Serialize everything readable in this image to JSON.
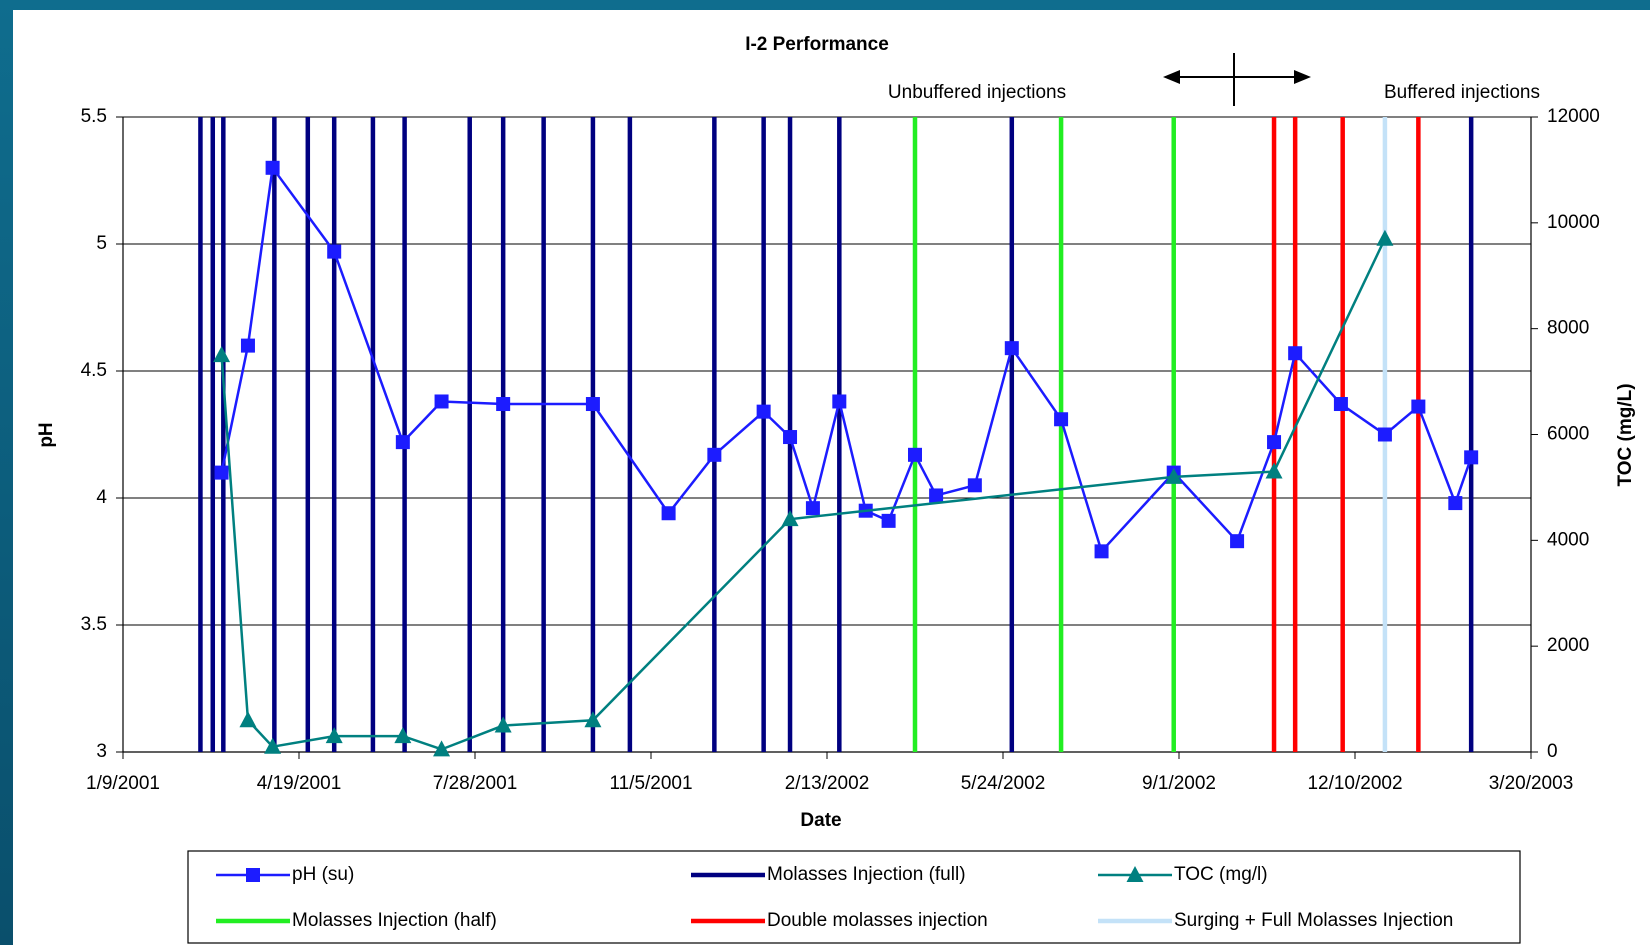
{
  "chart_data": {
    "type": "line",
    "title": "I-2 Performance",
    "x_label": "Date",
    "y_label": "pH",
    "y2_label": "TOC (mg/L)",
    "xlim": [
      "1/9/2001",
      "3/20/2003"
    ],
    "xticks": [
      "1/9/2001",
      "4/19/2001",
      "7/28/2001",
      "11/5/2001",
      "2/13/2002",
      "5/24/2002",
      "9/1/2002",
      "12/10/2002",
      "3/20/2003"
    ],
    "ylim": [
      3,
      5.5
    ],
    "yticks": [
      3,
      3.5,
      4,
      4.5,
      5,
      5.5
    ],
    "y2lim": [
      0,
      12000
    ],
    "y2ticks": [
      0,
      2000,
      4000,
      6000,
      8000,
      10000,
      12000
    ],
    "grid": true,
    "legend": "bottom",
    "annotations": [
      "Unbuffered injections",
      "Buffered injections"
    ],
    "series": [
      {
        "name": "pH (su)",
        "color": "#1c1cff",
        "marker": "square",
        "x": [
          "3/6/2001",
          "3/21/2001",
          "4/4/2001",
          "5/9/2001",
          "6/17/2001",
          "7/9/2001",
          "8/13/2001",
          "10/3/2001",
          "11/15/2001",
          "12/11/2001",
          "1/8/2002",
          "1/23/2002",
          "2/5/2002",
          "2/20/2002",
          "3/7/2002",
          "3/20/2002",
          "4/4/2002",
          "4/16/2002",
          "5/8/2002",
          "5/29/2002",
          "6/26/2002",
          "7/19/2002",
          "8/29/2002",
          "10/4/2002",
          "10/25/2002",
          "11/6/2002",
          "12/2/2002",
          "12/27/2002",
          "1/15/2003",
          "2/5/2003",
          "2/14/2003"
        ],
        "values": [
          4.1,
          4.6,
          5.3,
          4.97,
          4.22,
          4.38,
          4.37,
          4.37,
          3.94,
          4.17,
          4.34,
          4.24,
          3.96,
          4.38,
          3.95,
          3.91,
          4.17,
          4.01,
          4.05,
          4.59,
          4.31,
          3.79,
          4.1,
          3.83,
          4.22,
          4.57,
          4.37,
          4.25,
          4.36,
          3.98,
          4.16
        ]
      },
      {
        "name": "Molasses Injection (full)",
        "color": "#000080",
        "type": "vline",
        "x": [
          "2/22/2001",
          "3/1/2001",
          "3/7/2001",
          "4/5/2001",
          "4/24/2001",
          "5/9/2001",
          "5/31/2001",
          "6/18/2001",
          "7/25/2001",
          "8/13/2001",
          "9/5/2001",
          "10/3/2001",
          "10/24/2001",
          "12/11/2001",
          "1/8/2002",
          "1/23/2002",
          "2/20/2002",
          "5/29/2002",
          "2/14/2003"
        ]
      },
      {
        "name": "TOC (mg/l)",
        "color": "#008080",
        "marker": "triangle",
        "axis": "y2",
        "x": [
          "3/6/2001",
          "3/21/2001",
          "4/4/2001",
          "5/9/2001",
          "6/17/2001",
          "7/9/2001",
          "8/13/2001",
          "10/3/2001",
          "1/23/2002",
          "8/29/2002",
          "10/25/2002",
          "12/27/2002"
        ],
        "values": [
          7500,
          600,
          100,
          300,
          300,
          50,
          500,
          600,
          4400,
          5200,
          5300,
          9700
        ]
      },
      {
        "name": "Molasses Injection (half)",
        "color": "#22ee22",
        "type": "vline",
        "x": [
          "4/4/2002",
          "6/26/2002",
          "8/29/2002"
        ]
      },
      {
        "name": "Double molasses injection",
        "color": "#ff0000",
        "type": "vline",
        "x": [
          "10/25/2002",
          "11/6/2002",
          "12/3/2002",
          "1/15/2003"
        ]
      },
      {
        "name": "Surging + Full Molasses Injection",
        "color": "#c4e2f8",
        "type": "vline",
        "x": [
          "12/27/2002"
        ]
      }
    ]
  }
}
